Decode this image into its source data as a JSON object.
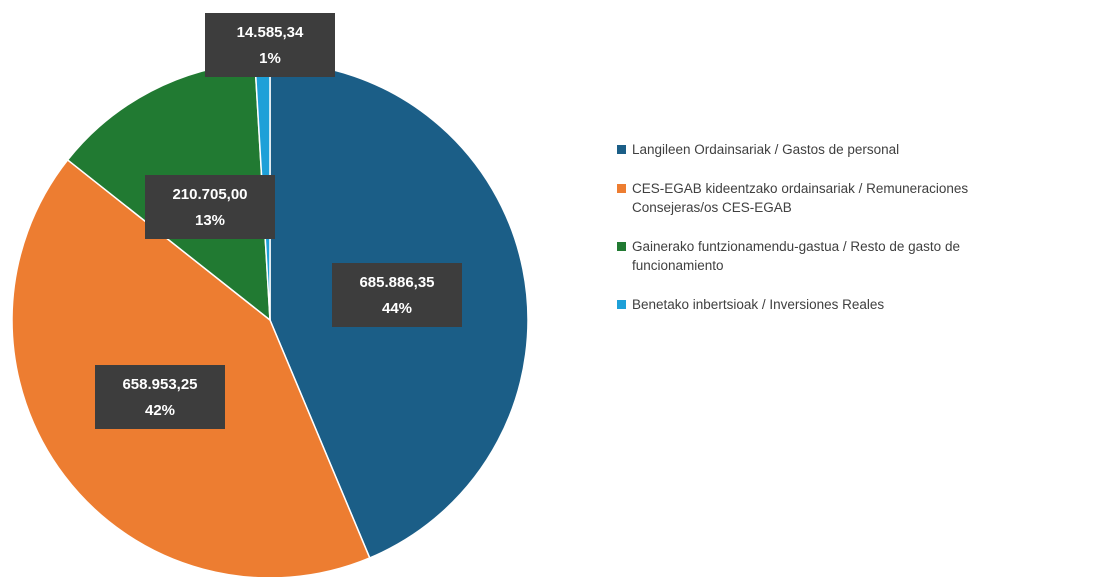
{
  "chart_data": {
    "type": "pie",
    "categories": [
      "Langileen Ordainsariak / Gastos de personal",
      "CES-EGAB kideentzako ordainsariak / Remuneraciones Consejeras/os CES-EGAB",
      "Gainerako funtzionamendu-gastua / Resto de gasto de funcionamiento",
      "Benetako inbertsioak / Inversiones Reales"
    ],
    "values": [
      685886.35,
      658953.25,
      210705.0,
      14585.34
    ],
    "value_labels": [
      "685.886,35",
      "658.953,25",
      "210.705,00",
      "14.585,34"
    ],
    "percent_labels": [
      "44%",
      "42%",
      "13%",
      "1%"
    ],
    "colors": [
      "#1b5e87",
      "#ed7d31",
      "#217a32",
      "#1ea0d8"
    ],
    "legend": "right"
  }
}
